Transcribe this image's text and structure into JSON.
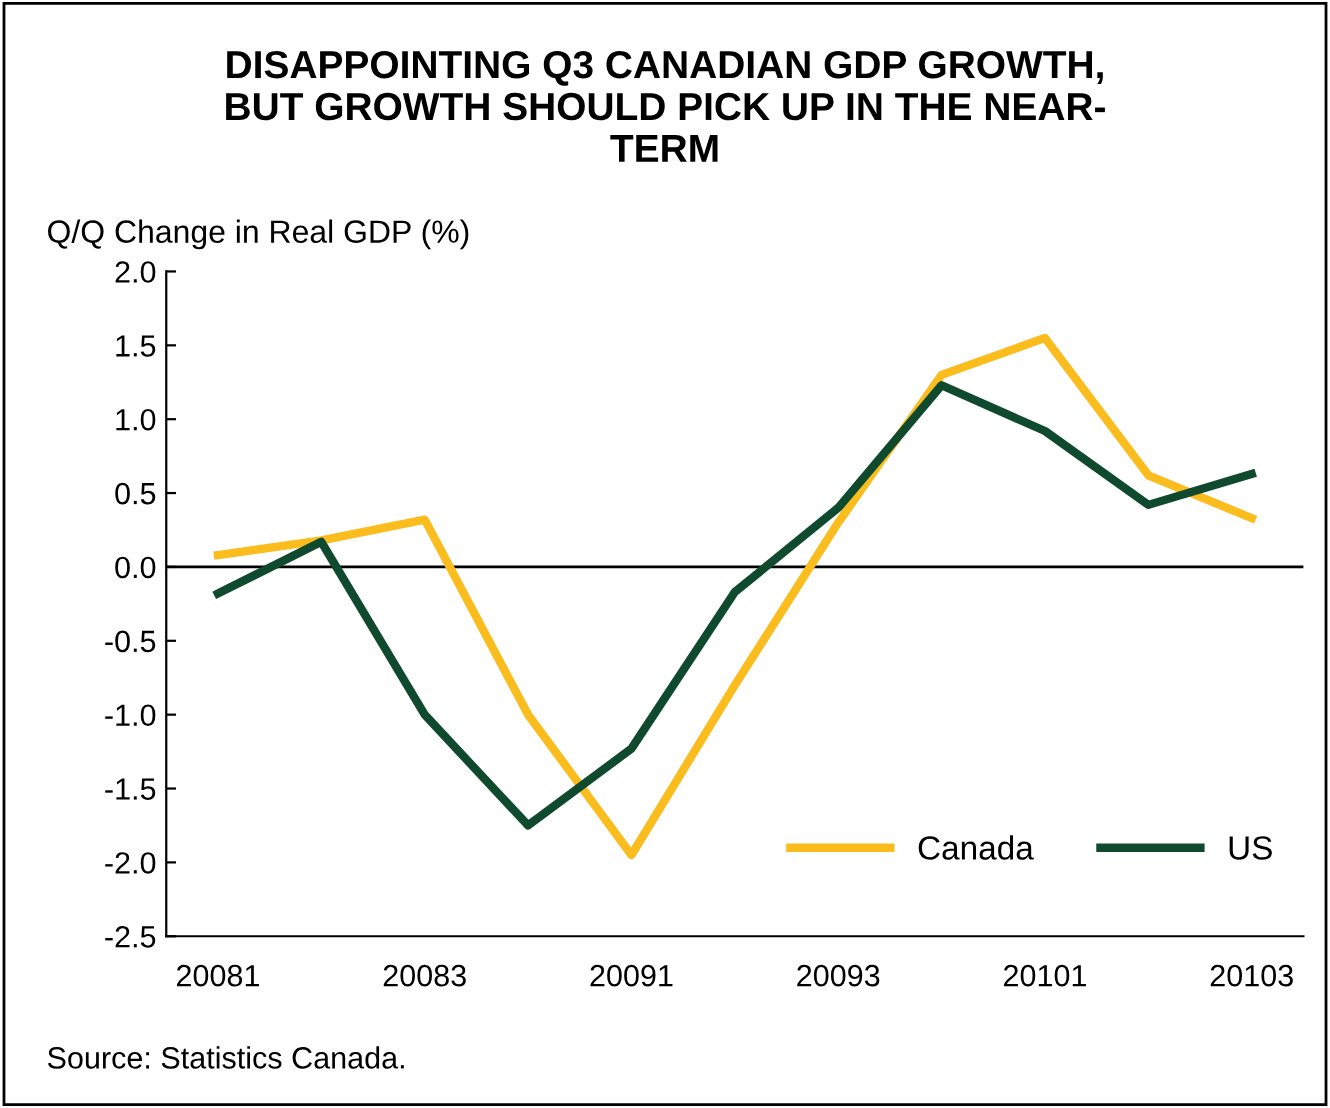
{
  "chart_data": {
    "type": "line",
    "title": "DISAPPOINTING Q3 CANADIAN GDP GROWTH,\nBUT GROWTH SHOULD PICK UP IN THE NEAR-\nTERM",
    "ylabel": "Q/Q Change in Real GDP (%)",
    "categories": [
      "20081",
      null,
      "20083",
      null,
      "20091",
      null,
      "20093",
      null,
      "20101",
      null,
      "20103"
    ],
    "series": [
      {
        "name": "Canada",
        "color": "#fbbc1e",
        "values": [
          0.08,
          0.18,
          0.32,
          -1.0,
          -1.95,
          -0.8,
          0.3,
          1.3,
          1.55,
          0.62,
          0.33
        ]
      },
      {
        "name": "US",
        "color": "#0f4a2e",
        "values": [
          -0.18,
          0.17,
          -1.0,
          -1.75,
          -1.23,
          -0.17,
          0.4,
          1.23,
          0.92,
          0.42,
          0.63
        ]
      }
    ],
    "ylim": [
      -2.5,
      2.0
    ],
    "yticks": [
      {
        "value": -2.5,
        "label": "-2.5"
      },
      {
        "value": -2.0,
        "label": "-2.0"
      },
      {
        "value": -1.5,
        "label": "-1.5"
      },
      {
        "value": -1.0,
        "label": "-1.0"
      },
      {
        "value": -0.5,
        "label": "-0.5"
      },
      {
        "value": 0.0,
        "label": "0.0"
      },
      {
        "value": 0.5,
        "label": "0.5"
      },
      {
        "value": 1.0,
        "label": "1.0"
      },
      {
        "value": 1.5,
        "label": "1.5"
      },
      {
        "value": 2.0,
        "label": "2.0"
      }
    ],
    "ref_lines": [
      {
        "axis": "y",
        "value": 0,
        "color": "#000000"
      }
    ],
    "legend": "bottom right",
    "grid": false,
    "marker": "none",
    "line_style": "solid",
    "annotations": [
      "Source: Statistics Canada."
    ]
  }
}
